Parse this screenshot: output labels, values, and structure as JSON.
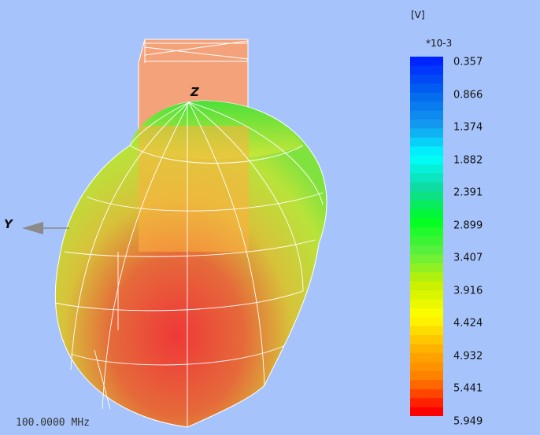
{
  "axes": {
    "z_label": "Z",
    "y_label": "Y"
  },
  "legend": {
    "unit": "[V]",
    "scale": "*10-3",
    "ticks": [
      "0.357",
      "0.866",
      "1.374",
      "1.882",
      "2.391",
      "2.899",
      "3.407",
      "3.916",
      "4.424",
      "4.932",
      "5.441",
      "5.949"
    ],
    "colors": [
      "#0024ff",
      "#0066ee",
      "#1499f0",
      "#00ffff",
      "#10d9a0",
      "#00ff20",
      "#5cf040",
      "#c8f000",
      "#ffff00",
      "#ffb400",
      "#ff7a00",
      "#ff0000"
    ]
  },
  "frequency": "100.0000 MHz"
}
